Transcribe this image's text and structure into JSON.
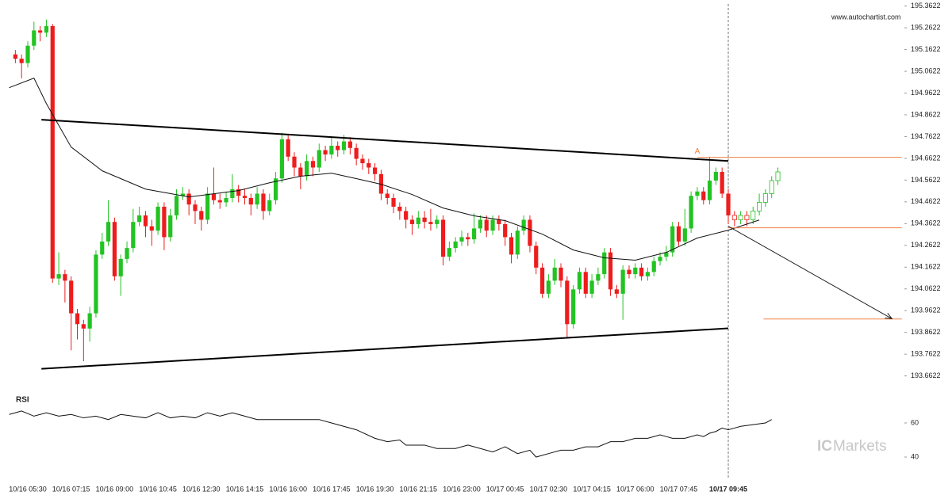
{
  "site": "www.autochartist.com",
  "brand": [
    "IC",
    "Markets"
  ],
  "chart_data": {
    "type": "candlestick",
    "up_color": "#22c322",
    "down_color": "#ee1c1c",
    "level_color": "#f08040",
    "open": [
      195.14,
      195.12,
      195.1,
      195.18,
      195.25,
      195.24,
      195.27,
      194.11,
      194.13,
      194.1,
      193.95,
      193.9,
      193.88,
      193.95,
      194.22,
      194.28,
      194.37,
      194.12,
      194.2,
      194.25,
      194.37,
      194.4,
      194.35,
      194.33,
      194.44,
      194.3,
      194.4,
      194.49,
      194.5,
      194.45,
      194.42,
      194.38,
      194.5,
      194.47,
      194.46,
      194.48,
      194.52,
      194.49,
      194.48,
      194.45,
      194.5,
      194.42,
      194.47,
      194.57,
      194.75,
      194.67,
      194.62,
      194.58,
      194.65,
      194.62,
      194.7,
      194.68,
      194.72,
      194.7,
      194.74,
      194.71,
      194.66,
      194.64,
      194.62,
      194.59,
      194.5,
      194.48,
      194.44,
      194.42,
      194.38,
      194.36,
      194.39,
      194.37,
      194.36,
      194.38,
      194.21,
      194.25,
      194.28,
      194.3,
      194.29,
      194.34,
      194.38,
      194.33,
      194.38,
      194.36,
      194.3,
      194.22,
      194.33,
      194.38,
      194.26,
      194.16,
      194.04,
      194.1,
      194.16,
      194.1,
      193.9,
      194.06,
      194.14,
      194.04,
      194.1,
      194.13,
      194.23,
      194.06,
      194.04,
      194.15,
      194.13,
      194.16,
      194.12,
      194.14,
      194.19,
      194.21,
      194.23,
      194.35,
      194.28,
      194.34,
      194.49,
      194.51,
      194.47,
      194.56,
      194.6,
      194.5,
      194.4,
      194.38,
      194.4,
      194.38,
      194.42,
      194.46,
      194.5,
      194.56
    ],
    "high": [
      195.16,
      195.14,
      195.2,
      195.29,
      195.27,
      195.3,
      195.28,
      194.23,
      194.15,
      194.12,
      193.97,
      193.92,
      193.98,
      194.24,
      194.32,
      194.47,
      194.39,
      194.22,
      194.28,
      194.43,
      194.44,
      194.42,
      194.38,
      194.46,
      194.46,
      194.43,
      194.52,
      194.53,
      194.52,
      194.47,
      194.44,
      194.53,
      194.62,
      194.5,
      194.51,
      194.59,
      194.54,
      194.52,
      194.5,
      194.53,
      194.52,
      194.5,
      194.6,
      194.78,
      194.77,
      194.69,
      194.64,
      194.68,
      194.67,
      194.73,
      194.72,
      194.76,
      194.74,
      194.77,
      194.76,
      194.73,
      194.68,
      194.66,
      194.64,
      194.61,
      194.52,
      194.5,
      194.46,
      194.44,
      194.4,
      194.42,
      194.42,
      194.43,
      194.4,
      194.4,
      194.28,
      194.3,
      194.33,
      194.32,
      194.41,
      194.4,
      194.4,
      194.4,
      194.4,
      194.38,
      194.32,
      194.35,
      194.4,
      194.4,
      194.28,
      194.18,
      194.13,
      194.2,
      194.18,
      194.12,
      194.08,
      194.16,
      194.16,
      194.13,
      194.16,
      194.25,
      194.25,
      194.08,
      194.17,
      194.17,
      194.18,
      194.18,
      194.16,
      194.21,
      194.23,
      194.26,
      194.37,
      194.37,
      194.43,
      194.51,
      194.53,
      194.53,
      194.67,
      194.62,
      194.62,
      194.52,
      194.42,
      194.42,
      194.42,
      194.44,
      194.5,
      194.52,
      194.58,
      194.62
    ],
    "low": [
      195.1,
      195.03,
      195.08,
      195.16,
      195.2,
      195.22,
      194.09,
      194.08,
      194.0,
      193.78,
      193.83,
      193.73,
      193.82,
      193.93,
      194.2,
      194.26,
      194.1,
      194.03,
      194.18,
      194.23,
      194.35,
      194.3,
      194.26,
      194.31,
      194.24,
      194.28,
      194.38,
      194.47,
      194.4,
      194.36,
      194.33,
      194.36,
      194.45,
      194.43,
      194.44,
      194.46,
      194.46,
      194.45,
      194.4,
      194.43,
      194.38,
      194.4,
      194.45,
      194.55,
      194.65,
      194.58,
      194.52,
      194.56,
      194.58,
      194.6,
      194.65,
      194.66,
      194.67,
      194.68,
      194.68,
      194.63,
      194.61,
      194.59,
      194.56,
      194.47,
      194.45,
      194.41,
      194.38,
      194.34,
      194.31,
      194.34,
      194.34,
      194.33,
      194.34,
      194.17,
      194.19,
      194.23,
      194.26,
      194.26,
      194.27,
      194.32,
      194.3,
      194.31,
      194.33,
      194.26,
      194.18,
      194.2,
      194.31,
      194.23,
      194.13,
      194.02,
      194.02,
      194.08,
      194.07,
      193.84,
      193.88,
      194.04,
      194.02,
      194.02,
      194.08,
      194.11,
      194.03,
      194.02,
      193.92,
      194.11,
      194.11,
      194.1,
      194.1,
      194.12,
      194.17,
      194.19,
      194.21,
      194.26,
      194.26,
      194.32,
      194.47,
      194.45,
      194.45,
      194.54,
      194.48,
      194.36,
      194.35,
      194.36,
      194.35,
      194.36,
      194.4,
      194.44,
      194.48,
      194.54
    ],
    "close": [
      195.12,
      195.1,
      195.18,
      195.25,
      195.24,
      195.27,
      194.11,
      194.13,
      194.1,
      193.95,
      193.9,
      193.88,
      193.95,
      194.22,
      194.28,
      194.37,
      194.12,
      194.2,
      194.25,
      194.37,
      194.4,
      194.35,
      194.33,
      194.44,
      194.3,
      194.4,
      194.49,
      194.5,
      194.45,
      194.42,
      194.38,
      194.5,
      194.47,
      194.46,
      194.48,
      194.52,
      194.49,
      194.48,
      194.45,
      194.5,
      194.42,
      194.47,
      194.57,
      194.75,
      194.67,
      194.62,
      194.58,
      194.65,
      194.62,
      194.7,
      194.68,
      194.72,
      194.7,
      194.74,
      194.71,
      194.66,
      194.64,
      194.62,
      194.59,
      194.5,
      194.48,
      194.44,
      194.42,
      194.38,
      194.36,
      194.39,
      194.37,
      194.36,
      194.38,
      194.21,
      194.25,
      194.28,
      194.3,
      194.29,
      194.34,
      194.38,
      194.33,
      194.38,
      194.36,
      194.3,
      194.22,
      194.33,
      194.38,
      194.26,
      194.16,
      194.04,
      194.1,
      194.16,
      194.1,
      193.9,
      194.06,
      194.14,
      194.04,
      194.1,
      194.13,
      194.23,
      194.06,
      194.04,
      194.15,
      194.13,
      194.16,
      194.12,
      194.14,
      194.19,
      194.21,
      194.23,
      194.35,
      194.28,
      194.34,
      194.49,
      194.51,
      194.47,
      194.56,
      194.6,
      194.5,
      194.4,
      194.38,
      194.4,
      194.38,
      194.42,
      194.46,
      194.5,
      194.56,
      194.6
    ],
    "xlim": [
      -2,
      143
    ],
    "xticks": [
      {
        "value": 2,
        "label": "10/16 05:30"
      },
      {
        "value": 9,
        "label": "10/16 07:15"
      },
      {
        "value": 16,
        "label": "10/16 09:00"
      },
      {
        "value": 23,
        "label": "10/16 10:45"
      },
      {
        "value": 30,
        "label": "10/16 12:30"
      },
      {
        "value": 37,
        "label": "10/16 14:15"
      },
      {
        "value": 44,
        "label": "10/16 16:00"
      },
      {
        "value": 51,
        "label": "10/16 17:45"
      },
      {
        "value": 58,
        "label": "10/16 19:30"
      },
      {
        "value": 65,
        "label": "10/16 21:15"
      },
      {
        "value": 72,
        "label": "10/16 23:00"
      },
      {
        "value": 79,
        "label": "10/17 00:45"
      },
      {
        "value": 86,
        "label": "10/17 02:30"
      },
      {
        "value": 93,
        "label": "10/17 04:15"
      },
      {
        "value": 100,
        "label": "10/17 06:00"
      },
      {
        "value": 107,
        "label": "10/17 07:45"
      },
      {
        "value": 115,
        "label": "10/17 09:45"
      }
    ],
    "ylim": [
      193.6,
      195.39
    ],
    "yticks": [
      195.3622,
      195.2622,
      195.1622,
      195.0622,
      194.9622,
      194.8622,
      194.7622,
      194.6622,
      194.5622,
      194.4622,
      194.3622,
      194.2622,
      194.1622,
      194.0622,
      193.9622,
      193.8622,
      193.7622,
      193.6622
    ],
    "moving_average": {
      "x": [
        -1,
        3,
        5,
        9,
        14,
        21,
        28,
        36,
        41,
        46,
        51,
        55,
        59,
        64,
        69,
        74,
        79,
        85,
        90,
        95,
        100,
        105,
        110,
        115,
        120
      ],
      "values": [
        194.987,
        195.031,
        194.914,
        194.714,
        194.605,
        194.521,
        194.485,
        194.514,
        194.55,
        194.58,
        194.594,
        194.569,
        194.543,
        194.496,
        194.434,
        194.398,
        194.376,
        194.314,
        194.241,
        194.205,
        194.194,
        194.23,
        194.296,
        194.332,
        194.379
      ]
    },
    "pattern": {
      "upper": {
        "x": [
          4.2,
          115
        ],
        "values": [
          194.84,
          194.65
        ]
      },
      "lower": {
        "x": [
          4.2,
          115
        ],
        "values": [
          193.695,
          193.881
        ]
      }
    },
    "levels": [
      {
        "x": [
          110,
          143
        ],
        "value": 194.667,
        "label": "A"
      },
      {
        "x": [
          115,
          143
        ],
        "value": 194.343
      },
      {
        "x": [
          120.7,
          143
        ],
        "value": 193.924
      }
    ],
    "arrow": {
      "x": [
        115,
        141.4
      ],
      "values": [
        194.35,
        193.925
      ]
    },
    "rsi": {
      "title": "RSI",
      "ylim": [
        30,
        78
      ],
      "yticks": [
        60,
        40
      ],
      "x": [
        -1,
        1,
        3,
        5,
        7,
        9,
        11,
        13,
        15,
        17,
        19,
        21,
        23,
        25,
        27,
        29,
        31,
        33,
        35,
        37,
        39,
        41,
        45,
        49,
        51,
        55,
        58,
        60,
        62,
        63,
        66,
        68,
        71,
        73,
        75,
        77,
        79,
        81,
        83,
        84,
        86,
        88,
        90,
        92,
        94,
        96,
        98,
        100,
        102,
        104,
        105,
        106,
        108,
        110,
        111,
        112,
        113,
        114,
        115,
        116,
        117,
        119,
        121,
        122
      ],
      "values": [
        65,
        67,
        64,
        66,
        64,
        65,
        63,
        64,
        62,
        65,
        64,
        63,
        66,
        63,
        64,
        63,
        66,
        64,
        66,
        64,
        62,
        62,
        62,
        62,
        60,
        56,
        51,
        49,
        50,
        47,
        47,
        45,
        45,
        47,
        45,
        43,
        46,
        42,
        44,
        40,
        42,
        44,
        44,
        46,
        46,
        49,
        49,
        51,
        51,
        53,
        52,
        51,
        51,
        53,
        52,
        54,
        55,
        57,
        56,
        57,
        58,
        59,
        60,
        62
      ]
    }
  }
}
